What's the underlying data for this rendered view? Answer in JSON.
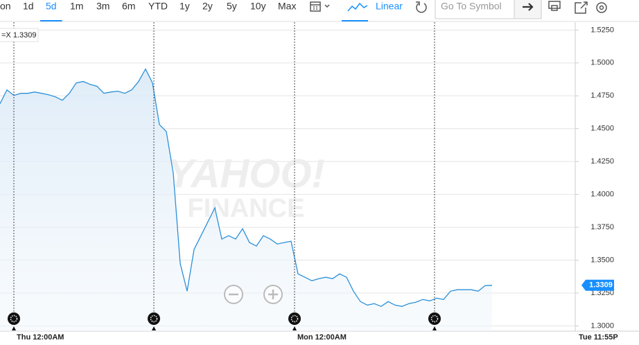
{
  "toolbar": {
    "range_buttons": [
      "on",
      "1d",
      "5d",
      "1m",
      "3m",
      "6m",
      "YTD",
      "1y",
      "2y",
      "5y",
      "10y",
      "Max"
    ],
    "active_range_index": 2,
    "scale": "Linear",
    "search_placeholder": "Go To Symbol"
  },
  "chart_data": {
    "type": "line",
    "symbol_label": "=X 1.3309",
    "watermark": [
      "YAHOO!",
      "FINANCE"
    ],
    "xtick_labels": [
      "Thu 12:00AM",
      "Mon 12:00AM",
      "Tue 11:55P"
    ],
    "series": [
      {
        "name": "=X",
        "color": "#2a8fd8",
        "values": [
          1.469,
          1.4795,
          1.4753,
          1.4769,
          1.4769,
          1.4779,
          1.4769,
          1.4758,
          1.4742,
          1.4716,
          1.4769,
          1.4848,
          1.4859,
          1.4837,
          1.4822,
          1.4769,
          1.4779,
          1.4785,
          1.4769,
          1.4795,
          1.4859,
          1.4954,
          1.4848,
          1.4531,
          1.4478,
          1.4162,
          1.3475,
          1.3264,
          1.3581,
          1.3686,
          1.3792,
          1.3898,
          1.366,
          1.3686,
          1.366,
          1.3739,
          1.3634,
          1.3607,
          1.3686,
          1.366,
          1.3623,
          1.3634,
          1.3644,
          1.3396,
          1.337,
          1.3343,
          1.3359,
          1.337,
          1.3359,
          1.3396,
          1.337,
          1.3264,
          1.3185,
          1.3158,
          1.3169,
          1.3148,
          1.3185,
          1.3158,
          1.3148,
          1.3169,
          1.318,
          1.3201,
          1.319,
          1.3211,
          1.3201,
          1.3264,
          1.3275,
          1.3275,
          1.3275,
          1.3264,
          1.3306,
          1.3309
        ]
      }
    ],
    "current_price": 1.3309,
    "ylim": [
      1.296,
      1.531
    ],
    "yticks": [
      {
        "value": 1.3,
        "label": "1.3000"
      },
      {
        "value": 1.325,
        "label": "1.3250"
      },
      {
        "value": 1.35,
        "label": "1.3500"
      },
      {
        "value": 1.375,
        "label": "1.3750"
      },
      {
        "value": 1.4,
        "label": "1.4000"
      },
      {
        "value": 1.425,
        "label": "1.4250"
      },
      {
        "value": 1.45,
        "label": "1.4500"
      },
      {
        "value": 1.475,
        "label": "1.4750"
      },
      {
        "value": 1.5,
        "label": "1.5000"
      },
      {
        "value": 1.525,
        "label": "1.5250"
      }
    ],
    "grid": true
  }
}
